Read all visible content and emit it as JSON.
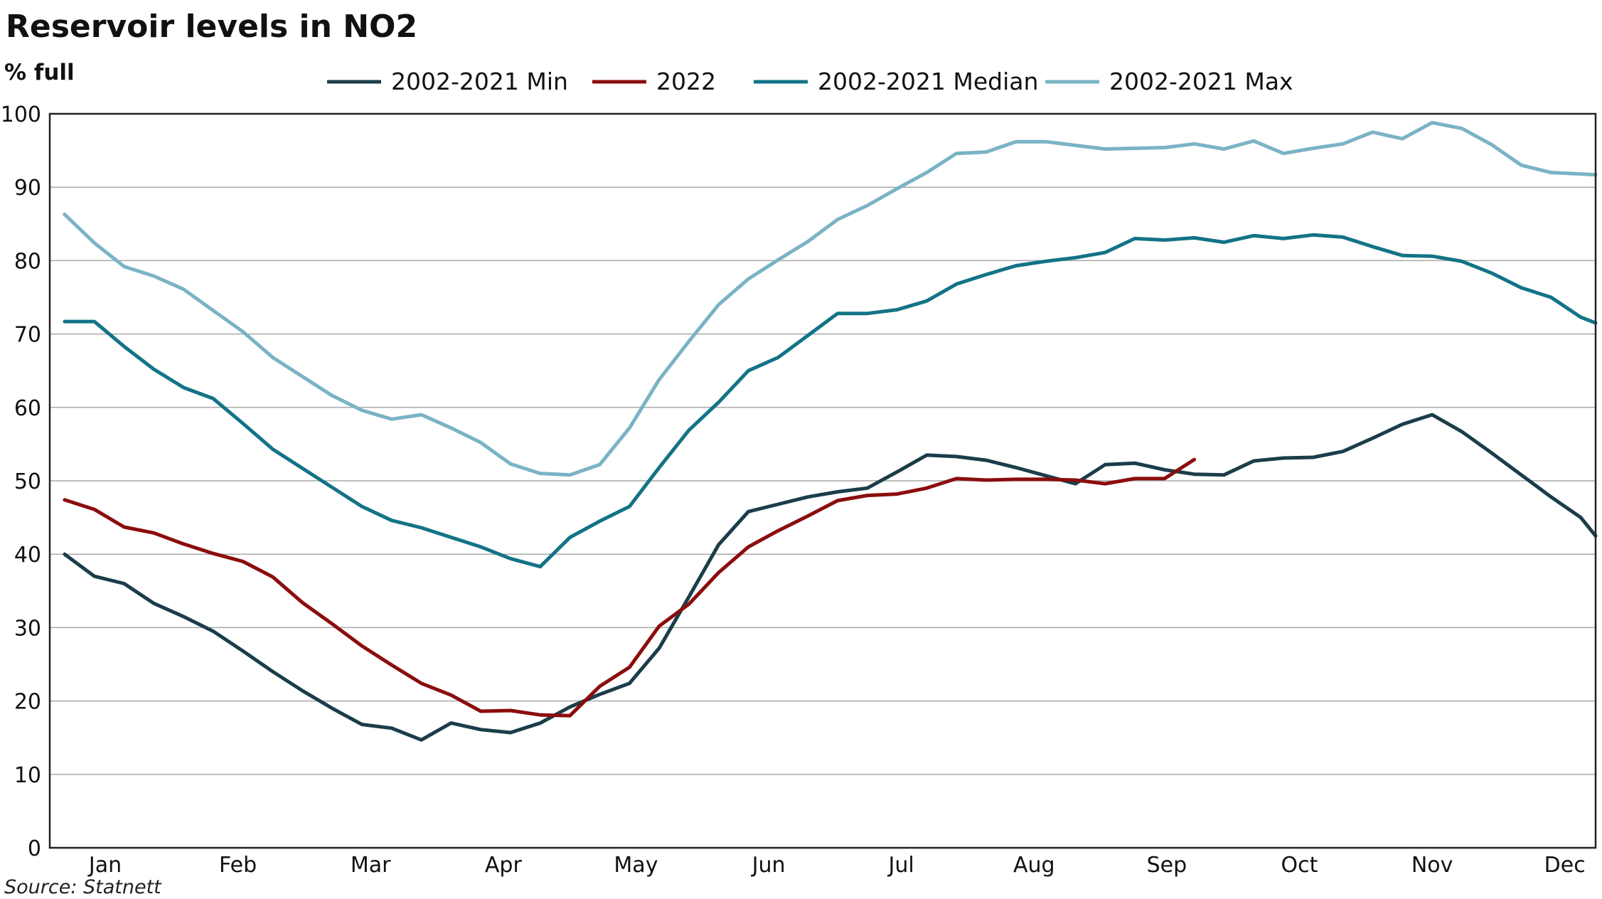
{
  "chart_data": {
    "type": "line",
    "title": "Reservoir levels in NO2",
    "ylabel": "% full",
    "xlabel": "",
    "source": "Source: Statnett",
    "x_tick_labels": [
      "Jan",
      "Feb",
      "Mar",
      "Apr",
      "May",
      "Jun",
      "Jul",
      "Aug",
      "Sep",
      "Oct",
      "Nov",
      "Dec"
    ],
    "y_ticks": [
      0,
      10,
      20,
      30,
      40,
      50,
      60,
      70,
      80,
      90,
      100
    ],
    "ylim": [
      0,
      100
    ],
    "xlim": [
      0.5,
      52.5
    ],
    "x_unit": "week",
    "grid": "horizontal",
    "legend_position": "top",
    "legend_order": [
      "2002-2021 Min",
      "2022",
      "2002-2021 Median",
      "2002-2021 Max"
    ],
    "series": [
      {
        "name": "2002-2021 Max",
        "color": "#7ab3c5",
        "x": [
          1,
          2,
          3,
          4,
          5,
          6,
          7,
          8,
          9,
          10,
          11,
          12,
          13,
          14,
          15,
          16,
          17,
          18,
          19,
          20,
          21,
          22,
          23,
          24,
          25,
          26,
          27,
          28,
          29,
          30,
          31,
          32,
          33,
          34,
          35,
          36,
          37,
          38,
          39,
          40,
          41,
          42,
          43,
          44,
          45,
          46,
          47,
          48,
          49,
          50,
          51,
          52,
          52.5
        ],
        "values": [
          86.3,
          82.4,
          79.2,
          77.9,
          76.1,
          73.2,
          70.3,
          66.8,
          64.2,
          61.6,
          59.6,
          58.4,
          59.0,
          57.2,
          55.2,
          52.3,
          51.0,
          50.8,
          52.2,
          57.2,
          63.8,
          69.0,
          74.0,
          77.5,
          80.1,
          82.6,
          85.6,
          87.5,
          89.8,
          92.0,
          94.6,
          94.8,
          96.2,
          96.2,
          95.7,
          95.2,
          95.3,
          95.4,
          95.9,
          95.2,
          96.3,
          94.6,
          95.3,
          95.9,
          97.5,
          96.6,
          98.8,
          98.0,
          95.8,
          93.0,
          92.0,
          91.8,
          91.7
        ]
      },
      {
        "name": "2002-2021 Median",
        "color": "#137387",
        "x": [
          1,
          2,
          3,
          4,
          5,
          6,
          7,
          8,
          9,
          10,
          11,
          12,
          13,
          14,
          15,
          16,
          17,
          18,
          19,
          20,
          21,
          22,
          23,
          24,
          25,
          26,
          27,
          28,
          29,
          30,
          31,
          32,
          33,
          34,
          35,
          36,
          37,
          38,
          39,
          40,
          41,
          42,
          43,
          44,
          45,
          46,
          47,
          48,
          49,
          50,
          51,
          52,
          52.5
        ],
        "values": [
          71.7,
          71.7,
          68.3,
          65.2,
          62.7,
          61.2,
          57.8,
          54.3,
          51.7,
          49.1,
          46.5,
          44.6,
          43.6,
          42.3,
          41.0,
          39.4,
          38.3,
          42.3,
          44.5,
          46.5,
          51.8,
          56.9,
          60.7,
          65.0,
          66.8,
          69.8,
          72.8,
          72.8,
          73.3,
          74.5,
          76.8,
          78.1,
          79.3,
          79.9,
          80.4,
          81.1,
          83.0,
          82.8,
          83.1,
          82.5,
          83.4,
          83.0,
          83.5,
          83.2,
          81.9,
          80.7,
          80.6,
          79.9,
          78.3,
          76.3,
          75.0,
          72.3,
          71.5
        ]
      },
      {
        "name": "2002-2021 Min",
        "color": "#1b3d4a",
        "x": [
          1,
          2,
          3,
          4,
          5,
          6,
          7,
          8,
          9,
          10,
          11,
          12,
          13,
          14,
          15,
          16,
          17,
          18,
          19,
          20,
          21,
          22,
          23,
          24,
          25,
          26,
          27,
          28,
          29,
          30,
          31,
          32,
          33,
          34,
          35,
          36,
          37,
          38,
          39,
          40,
          41,
          42,
          43,
          44,
          45,
          46,
          47,
          48,
          49,
          50,
          51,
          52,
          52.5
        ],
        "values": [
          40.0,
          37.0,
          36.0,
          33.3,
          31.5,
          29.5,
          26.8,
          24.0,
          21.4,
          19.0,
          16.8,
          16.3,
          14.7,
          17.0,
          16.1,
          15.7,
          17.0,
          19.2,
          20.9,
          22.4,
          27.2,
          34.2,
          41.3,
          45.8,
          46.8,
          47.8,
          48.5,
          49.0,
          51.2,
          53.5,
          53.3,
          52.8,
          51.8,
          50.7,
          49.6,
          52.2,
          52.4,
          51.5,
          50.9,
          50.8,
          52.7,
          53.1,
          53.2,
          54.0,
          55.8,
          57.7,
          59.0,
          56.7,
          53.8,
          50.8,
          47.8,
          45.0,
          42.5
        ]
      },
      {
        "name": "2022",
        "color": "#8b0d0d",
        "x": [
          1,
          2,
          3,
          4,
          5,
          6,
          7,
          8,
          9,
          10,
          11,
          12,
          13,
          14,
          15,
          16,
          17,
          18,
          19,
          20,
          21,
          22,
          23,
          24,
          25,
          26,
          27,
          28,
          29,
          30,
          31,
          32,
          33,
          34,
          35,
          36,
          37,
          38,
          39
        ],
        "values": [
          47.4,
          46.1,
          43.7,
          42.9,
          41.4,
          40.1,
          39.0,
          36.9,
          33.4,
          30.5,
          27.5,
          24.9,
          22.4,
          20.8,
          18.6,
          18.7,
          18.1,
          18.0,
          22.0,
          24.6,
          30.2,
          33.2,
          37.5,
          41.0,
          43.2,
          45.2,
          47.3,
          48.0,
          48.2,
          49.0,
          50.3,
          50.1,
          50.2,
          50.2,
          50.1,
          49.6,
          50.3,
          50.3,
          52.9
        ]
      }
    ]
  }
}
